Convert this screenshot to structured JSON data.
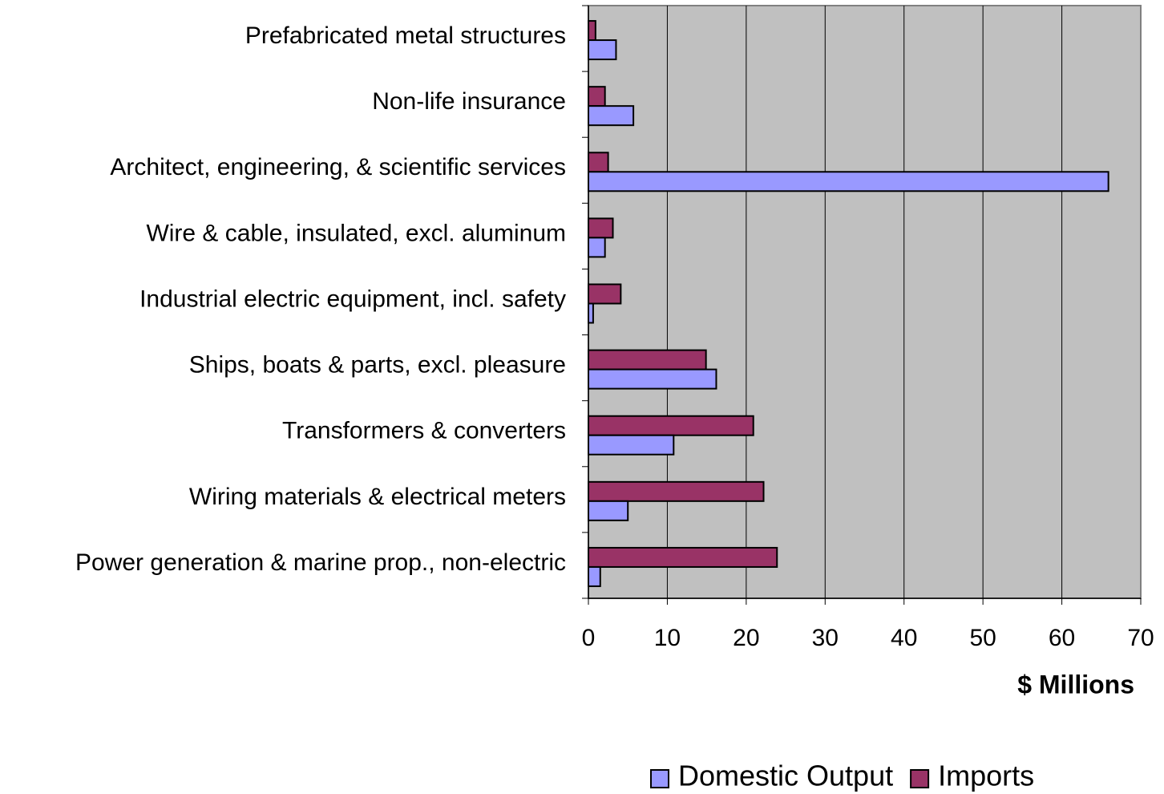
{
  "chart_data": {
    "type": "hbar",
    "categories": [
      "Prefabricated metal structures",
      "Non-life insurance",
      "Architect, engineering, & scientific services",
      "Wire & cable, insulated, excl. aluminum",
      "Industrial electric equipment, incl. safety",
      "Ships, boats & parts, excl. pleasure",
      "Transformers & converters",
      "Wiring materials & electrical meters",
      "Power generation & marine prop., non-electric"
    ],
    "series": [
      {
        "name": "Domestic Output",
        "color": "#9999ff",
        "values": [
          3.5,
          5.7,
          65.9,
          2.1,
          0.6,
          16.2,
          10.8,
          5.0,
          1.5
        ]
      },
      {
        "name": "Imports",
        "color": "#993366",
        "values": [
          0.9,
          2.1,
          2.5,
          3.1,
          4.1,
          14.9,
          20.9,
          22.2,
          23.9
        ]
      }
    ],
    "xlabel": "$ Millions",
    "xlim": [
      0,
      70
    ],
    "xticks": [
      0,
      10,
      20,
      30,
      40,
      50,
      60,
      70
    ],
    "grid": true,
    "plot_background": "#c0c0c0",
    "legend": "bottom"
  }
}
